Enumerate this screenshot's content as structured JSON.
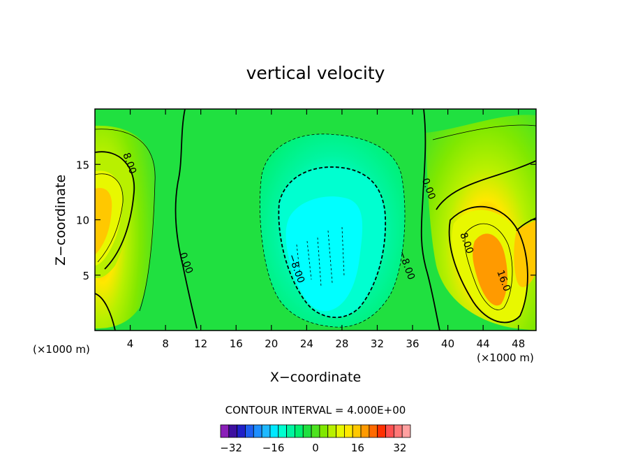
{
  "chart_data": {
    "type": "heatmap",
    "title": "vertical velocity",
    "xlabel": "X−coordinate",
    "ylabel": "Z−coordinate",
    "x_unit_left": "(×1000 m)",
    "x_unit_right": "(×1000 m)",
    "xlim": [
      0,
      50
    ],
    "ylim": [
      0,
      20
    ],
    "x_ticks": [
      4,
      8,
      12,
      16,
      20,
      24,
      28,
      32,
      36,
      40,
      44,
      48
    ],
    "y_ticks": [
      5,
      10,
      15
    ],
    "contour_interval_text": "CONTOUR INTERVAL = 4.000E+00",
    "contour_labels": [
      {
        "text": "8.00",
        "x": 3.6,
        "y": 15.0
      },
      {
        "text": "0.00",
        "x": 10.0,
        "y": 6.0
      },
      {
        "text": "−8.00",
        "x": 22.5,
        "y": 5.5
      },
      {
        "text": "−8.00",
        "x": 35.0,
        "y": 5.8
      },
      {
        "text": "0.00",
        "x": 37.5,
        "y": 12.7
      },
      {
        "text": "8.00",
        "x": 41.8,
        "y": 7.8
      },
      {
        "text": "16.0",
        "x": 46.0,
        "y": 4.4
      }
    ],
    "colorbar": {
      "ticks": [
        -32,
        -16,
        0,
        16,
        32
      ],
      "tick_labels": [
        "−32",
        "−16",
        "0",
        "16",
        "32"
      ],
      "levels": [
        -36,
        36
      ],
      "interval": 4,
      "colors": [
        "#8a1fb8",
        "#3d0fa0",
        "#2020c8",
        "#1e5ff0",
        "#1e8fff",
        "#1eb8ff",
        "#00e8ff",
        "#00ffd0",
        "#00f5a0",
        "#00f070",
        "#20e040",
        "#4de320",
        "#80e800",
        "#b8f000",
        "#e8f800",
        "#ffe800",
        "#ffc800",
        "#ff9a00",
        "#ff6a00",
        "#ff3000",
        "#ff5050",
        "#ff7878",
        "#ffa0a0"
      ]
    }
  }
}
